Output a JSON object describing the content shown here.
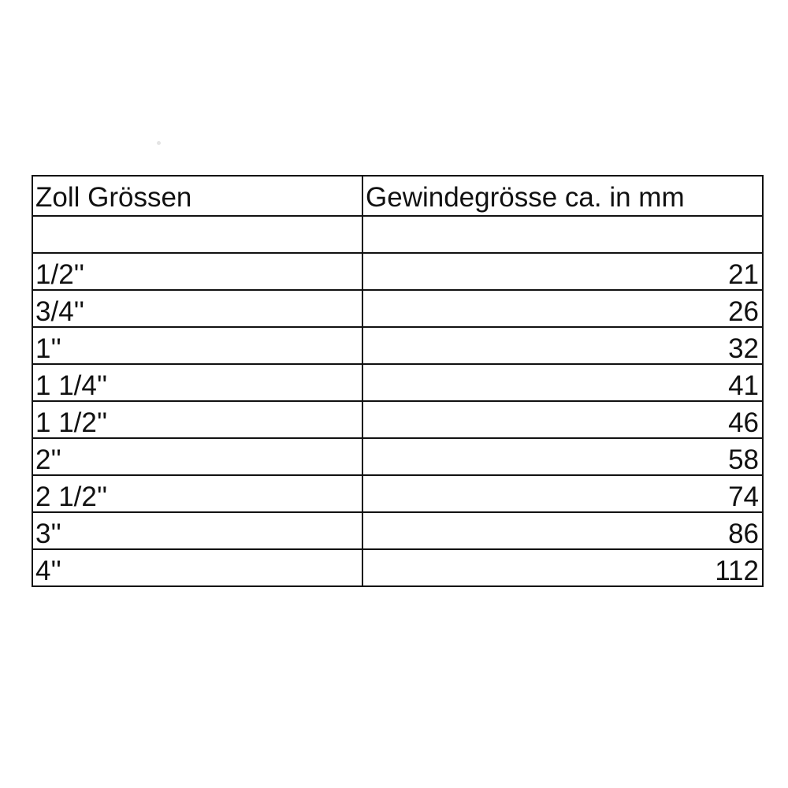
{
  "table": {
    "headers": [
      "Zoll Grössen",
      "Gewindegrösse ca. in mm"
    ],
    "rows": [
      [
        "",
        ""
      ],
      [
        "1/2''",
        "21"
      ],
      [
        "3/4''",
        "26"
      ],
      [
        "1''",
        "32"
      ],
      [
        "1 1/4''",
        "41"
      ],
      [
        "1 1/2''",
        "46"
      ],
      [
        "2''",
        "58"
      ],
      [
        "2 1/2''",
        "74"
      ],
      [
        "3''",
        "86"
      ],
      [
        "4''",
        "112"
      ]
    ]
  }
}
